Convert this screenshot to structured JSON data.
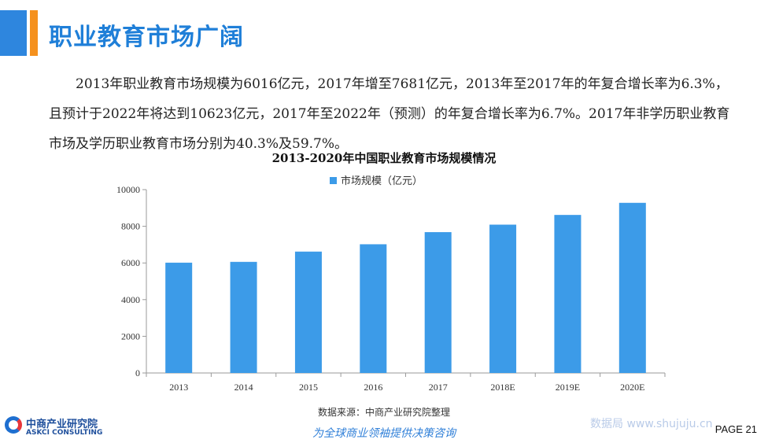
{
  "header": {
    "title": "职业教育市场广阔",
    "accent_colors": [
      "#2e86de",
      "#f5911e"
    ]
  },
  "intro_text": "2013年职业教育市场规模为6016亿元，2017年增至7681亿元，2013年至2017年的年复合增长率为6.3%，且预计于2022年将达到10623亿元，2017年至2022年（预测）的年复合增长率为6.7%。2017年非学历职业教育市场及学历职业教育市场分别为40.3%及59.7%。",
  "chart_data": {
    "type": "bar",
    "title": "2013-2020年中国职业教育市场规模情况",
    "xlabel": "",
    "ylabel": "",
    "categories": [
      "2013",
      "2014",
      "2015",
      "2016",
      "2017",
      "2018E",
      "2019E",
      "2020E"
    ],
    "series": [
      {
        "name": "市场规模（亿元）",
        "values": [
          6016,
          6060,
          6620,
          7020,
          7681,
          8090,
          8620,
          9280
        ],
        "color": "#3c9be8"
      }
    ],
    "ylim": [
      0,
      10000
    ],
    "yticks": [
      0,
      2000,
      4000,
      6000,
      8000,
      10000
    ],
    "grid": false,
    "legend": "top-center"
  },
  "footer": {
    "source": "数据来源：中商产业研究院整理",
    "slogan": "为全球商业领袖提供决策咨询",
    "logo_cn": "中商产业研究院",
    "logo_en": "ASKCI CONSULTING",
    "watermark": "数据局 www.shujuju.cn",
    "page": "PAGE 21"
  }
}
